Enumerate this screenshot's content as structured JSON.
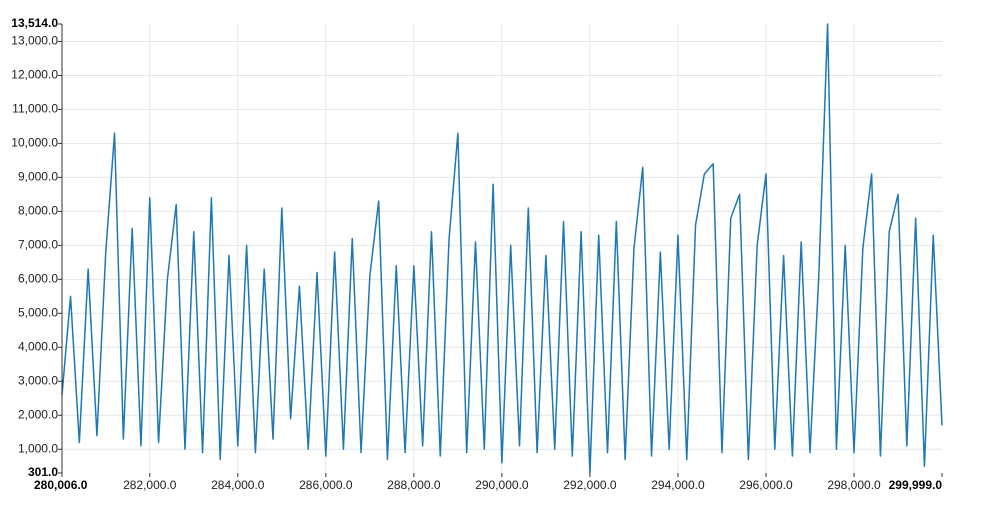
{
  "chart_data": {
    "type": "line",
    "x": [
      280006,
      280200,
      280400,
      280600,
      280800,
      281000,
      281200,
      281400,
      281600,
      281800,
      282000,
      282200,
      282400,
      282600,
      282800,
      283000,
      283200,
      283400,
      283600,
      283800,
      284000,
      284200,
      284400,
      284600,
      284800,
      285000,
      285200,
      285400,
      285600,
      285800,
      286000,
      286200,
      286400,
      286600,
      286800,
      287000,
      287200,
      287400,
      287600,
      287800,
      288000,
      288200,
      288400,
      288600,
      288800,
      289000,
      289200,
      289400,
      289600,
      289800,
      290000,
      290200,
      290400,
      290600,
      290800,
      291000,
      291200,
      291400,
      291600,
      291800,
      292000,
      292200,
      292400,
      292600,
      292800,
      293000,
      293200,
      293400,
      293600,
      293800,
      294000,
      294200,
      294400,
      294600,
      294800,
      295000,
      295200,
      295400,
      295600,
      295800,
      296000,
      296200,
      296400,
      296600,
      296800,
      297000,
      297200,
      297400,
      297600,
      297800,
      298000,
      298200,
      298400,
      298600,
      298800,
      299000,
      299200,
      299400,
      299600,
      299800,
      299999
    ],
    "series": [
      {
        "color": "#1f77b4",
        "values": [
          2600,
          5500,
          1200,
          6300,
          1400,
          6800,
          10300,
          1300,
          7500,
          1100,
          8400,
          1200,
          6000,
          8200,
          1000,
          7400,
          900,
          8400,
          700,
          6700,
          1100,
          7000,
          900,
          6300,
          1300,
          8100,
          1900,
          5800,
          1000,
          6200,
          800,
          6800,
          1000,
          7200,
          900,
          6100,
          8300,
          700,
          6400,
          900,
          6400,
          1100,
          7400,
          800,
          7200,
          10300,
          900,
          7100,
          1000,
          8800,
          600,
          7000,
          1100,
          8100,
          900,
          6700,
          1000,
          7700,
          800,
          7400,
          301,
          7300,
          900,
          7700,
          700,
          6900,
          9300,
          800,
          6800,
          1000,
          7300,
          700,
          7600,
          9100,
          9400,
          900,
          7800,
          8500,
          700,
          7000,
          9100,
          1000,
          6700,
          800,
          7100,
          900,
          6100,
          13514,
          1000,
          7000,
          900,
          6900,
          9100,
          800,
          7400,
          8500,
          1100,
          7800,
          500,
          7300,
          1700
        ]
      }
    ],
    "xlim": [
      280006,
      299999
    ],
    "xticks": [
      {
        "value": 280006,
        "label": "280,006.0"
      },
      {
        "value": 282000,
        "label": "282,000.0"
      },
      {
        "value": 284000,
        "label": "284,000.0"
      },
      {
        "value": 286000,
        "label": "286,000.0"
      },
      {
        "value": 288000,
        "label": "288,000.0"
      },
      {
        "value": 290000,
        "label": "290,000.0"
      },
      {
        "value": 292000,
        "label": "292,000.0"
      },
      {
        "value": 294000,
        "label": "294,000.0"
      },
      {
        "value": 296000,
        "label": "296,000.0"
      },
      {
        "value": 298000,
        "label": "298,000.0"
      },
      {
        "value": 299999,
        "label": "299,999.0"
      }
    ],
    "ylim": [
      301,
      13514
    ],
    "yticks": [
      {
        "value": 301,
        "label": "301.0"
      },
      {
        "value": 1000,
        "label": "1,000.0"
      },
      {
        "value": 2000,
        "label": "2,000.0"
      },
      {
        "value": 3000,
        "label": "3,000.0"
      },
      {
        "value": 4000,
        "label": "4,000.0"
      },
      {
        "value": 5000,
        "label": "5,000.0"
      },
      {
        "value": 6000,
        "label": "6,000.0"
      },
      {
        "value": 7000,
        "label": "7,000.0"
      },
      {
        "value": 8000,
        "label": "8,000.0"
      },
      {
        "value": 9000,
        "label": "9,000.0"
      },
      {
        "value": 10000,
        "label": "10,000.0"
      },
      {
        "value": 11000,
        "label": "11,000.0"
      },
      {
        "value": 12000,
        "label": "12,000.0"
      },
      {
        "value": 13000,
        "label": "13,000.0"
      },
      {
        "value": 13514,
        "label": "13,514.0"
      }
    ],
    "grid": true
  }
}
